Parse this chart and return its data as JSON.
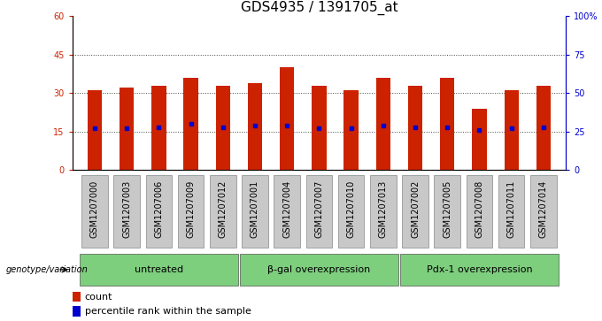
{
  "title": "GDS4935 / 1391705_at",
  "samples": [
    "GSM1207000",
    "GSM1207003",
    "GSM1207006",
    "GSM1207009",
    "GSM1207012",
    "GSM1207001",
    "GSM1207004",
    "GSM1207007",
    "GSM1207010",
    "GSM1207013",
    "GSM1207002",
    "GSM1207005",
    "GSM1207008",
    "GSM1207011",
    "GSM1207014"
  ],
  "counts": [
    31,
    32,
    33,
    36,
    33,
    34,
    40,
    33,
    31,
    36,
    33,
    36,
    24,
    31,
    33
  ],
  "percentiles": [
    27,
    27,
    28,
    30,
    28,
    29,
    29,
    27,
    27,
    29,
    28,
    28,
    26,
    27,
    28
  ],
  "groups": [
    {
      "label": "untreated",
      "start": 0,
      "end": 5
    },
    {
      "label": "β-gal overexpression",
      "start": 5,
      "end": 10
    },
    {
      "label": "Pdx-1 overexpression",
      "start": 10,
      "end": 15
    }
  ],
  "ylim_left": [
    0,
    60
  ],
  "ylim_right": [
    0,
    100
  ],
  "yticks_left": [
    0,
    15,
    30,
    45,
    60
  ],
  "yticks_right": [
    0,
    25,
    50,
    75,
    100
  ],
  "ytick_labels_right": [
    "0",
    "25",
    "50",
    "75",
    "100%"
  ],
  "bar_color": "#cc2200",
  "dot_color": "#0000cc",
  "bar_width": 0.45,
  "group_green": "#7dce7d",
  "title_fontsize": 11,
  "tick_fontsize": 7,
  "group_fontsize": 8,
  "legend_fontsize": 8,
  "genotype_label": "genotype/variation",
  "dotted_grid_color": "#444444"
}
